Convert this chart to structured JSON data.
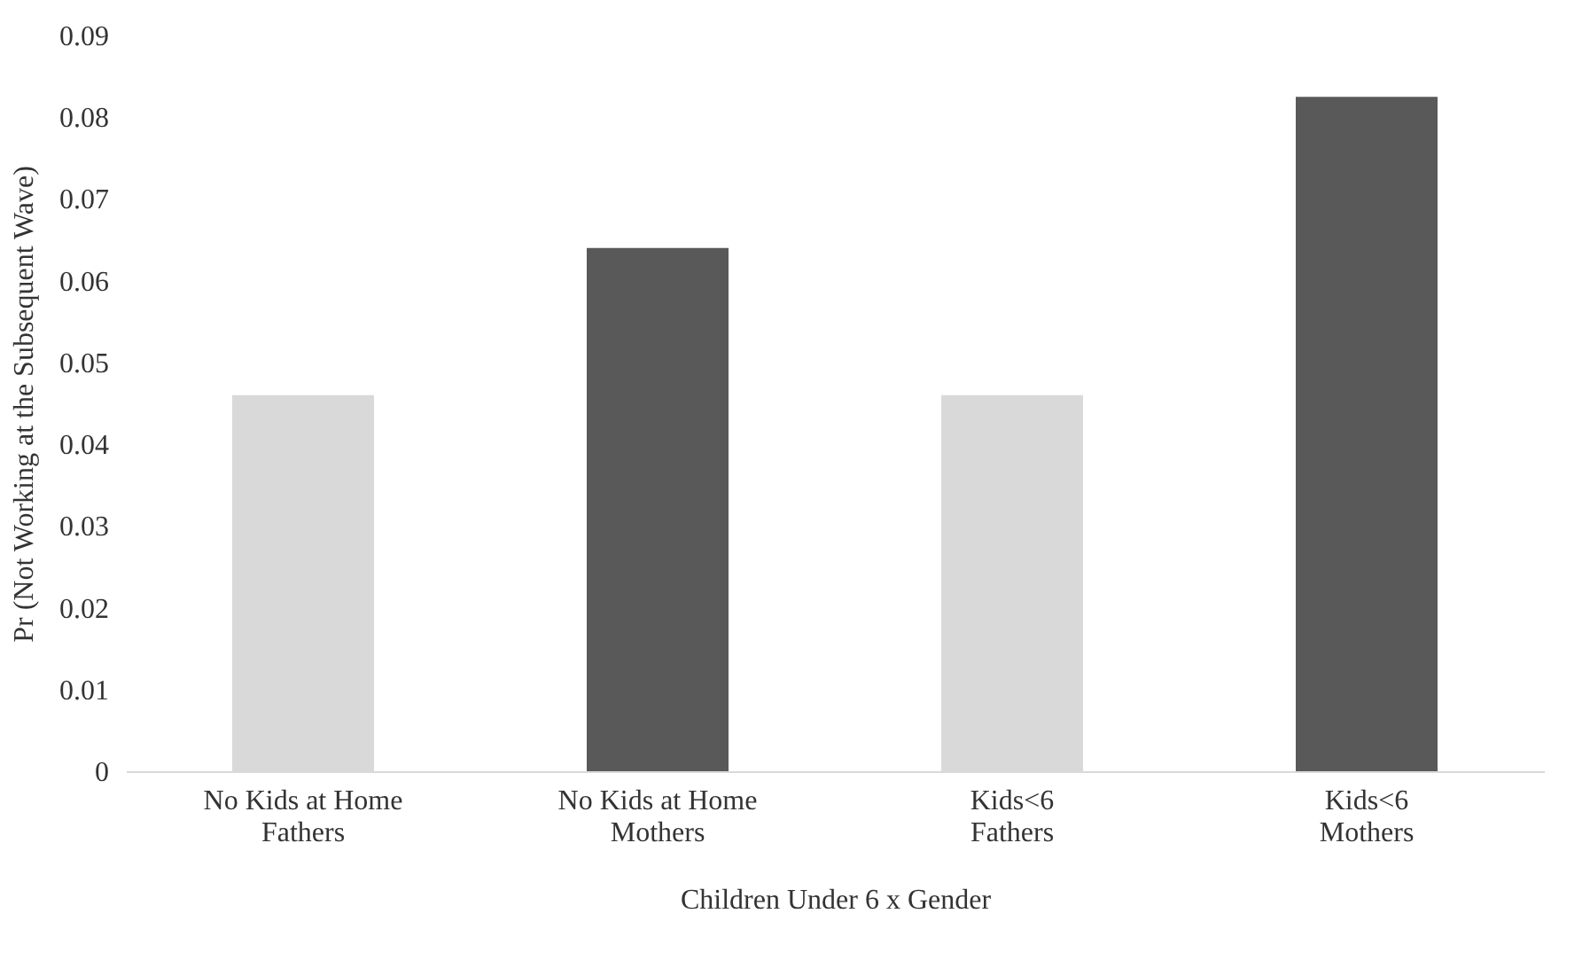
{
  "chart_data": {
    "type": "bar",
    "xlabel": "Children Under 6 x Gender",
    "ylabel": "Pr (Not Working at the Subsequent Wave)",
    "categories": [
      "No Kids at Home\nFathers",
      "No Kids at Home\nMothers",
      "Kids<6\nFathers",
      "Kids<6\nMothers"
    ],
    "values": [
      0.046,
      0.064,
      0.046,
      0.0825
    ],
    "colors": [
      "#d9d9d9",
      "#595959",
      "#d9d9d9",
      "#595959"
    ],
    "ylim": [
      0,
      0.09
    ],
    "yticks": [
      0,
      0.01,
      0.02,
      0.03,
      0.04,
      0.05,
      0.06,
      0.07,
      0.08,
      0.09
    ],
    "grid": false
  }
}
